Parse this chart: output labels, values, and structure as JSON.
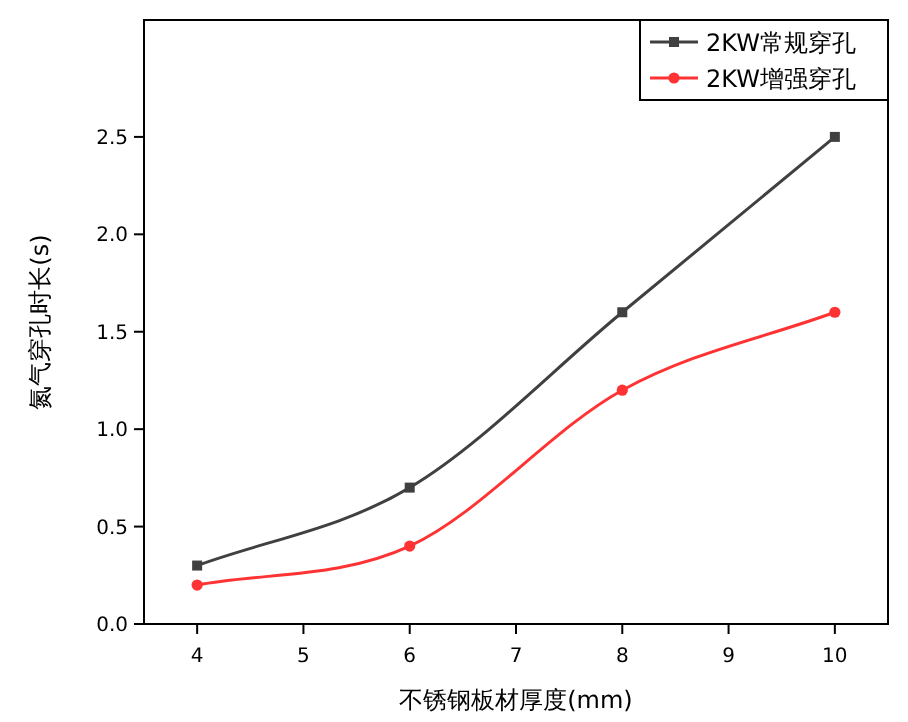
{
  "chart_data": {
    "type": "line",
    "xlabel": "不锈钢板材厚度(mm)",
    "ylabel": "氮气穿孔时长(s)",
    "x": [
      4,
      6,
      8,
      10
    ],
    "series": [
      {
        "name": "2KW常规穿孔",
        "color": "#404040",
        "values": [
          0.3,
          0.7,
          1.6,
          2.5
        ],
        "marker": "square"
      },
      {
        "name": "2KW增强穿孔",
        "color": "#ff3333",
        "values": [
          0.2,
          0.4,
          1.2,
          1.6
        ],
        "marker": "circle"
      }
    ],
    "xlim": [
      3.5,
      10.5
    ],
    "ylim": [
      0,
      3.1
    ],
    "xticks": [
      4,
      5,
      6,
      7,
      8,
      9,
      10
    ],
    "yticks": [
      {
        "value": 0,
        "label": "0.0"
      },
      0.5,
      {
        "value": 1,
        "label": "1.0"
      },
      1.5,
      {
        "value": 2,
        "label": "2.0"
      },
      2.5
    ],
    "legend": "top right",
    "grid": false,
    "line_style": "solid"
  }
}
